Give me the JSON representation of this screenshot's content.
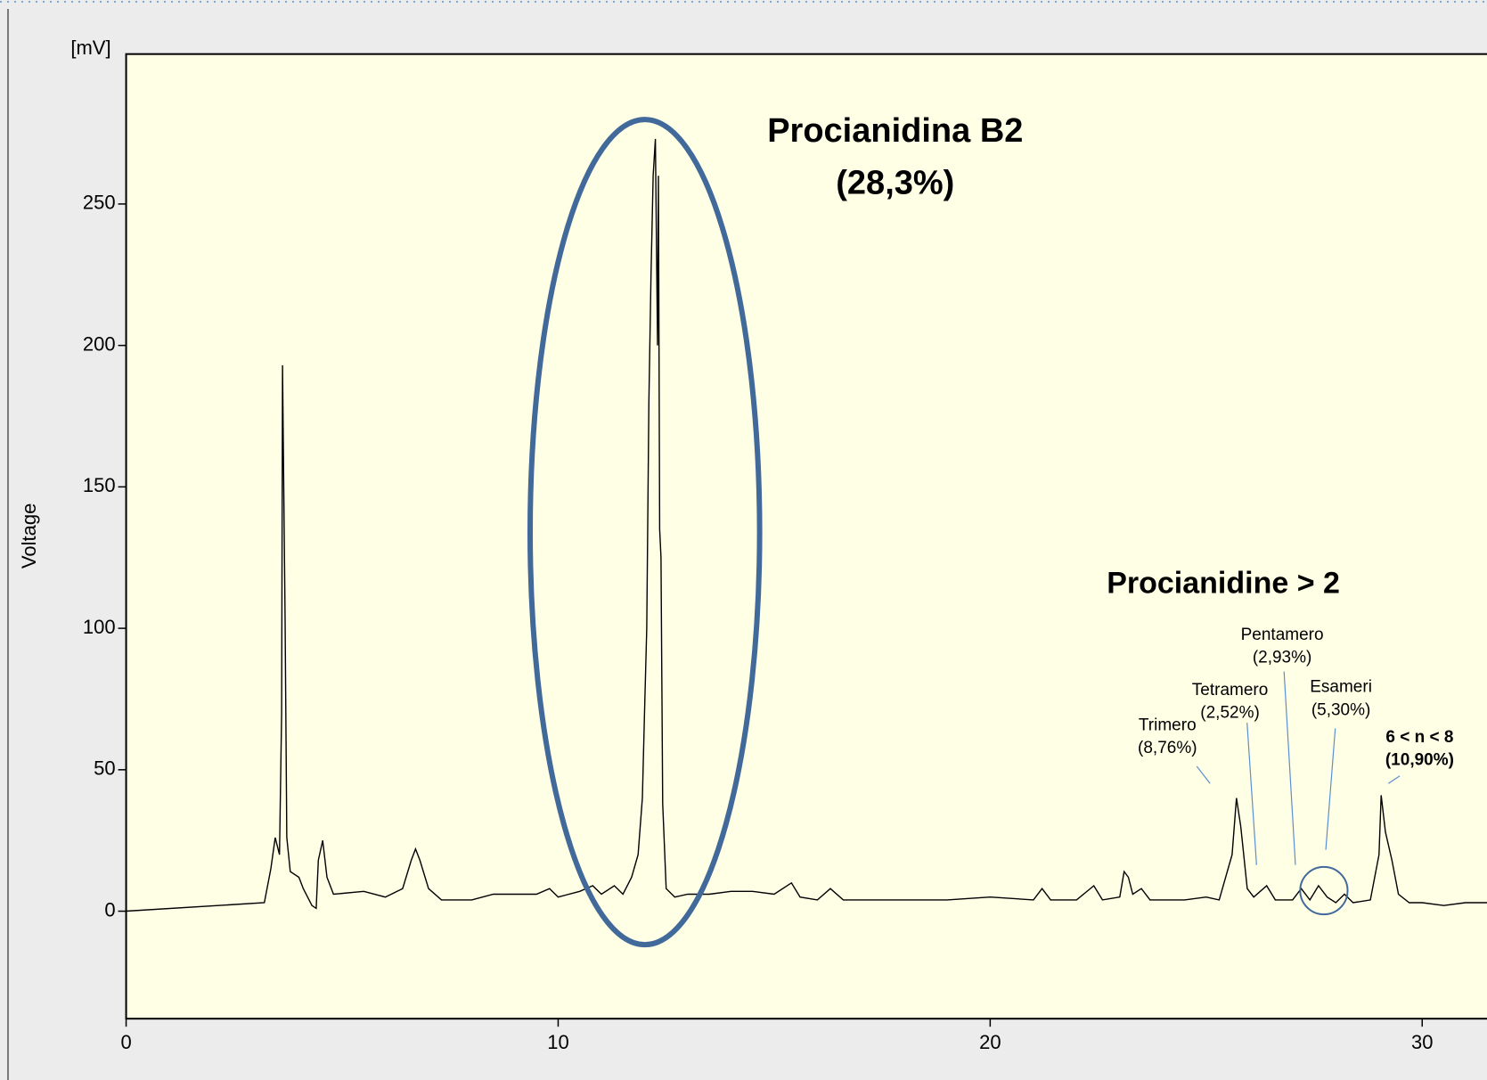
{
  "chart_data": {
    "type": "line",
    "y_unit": "[mV]",
    "ylabel": "Voltage",
    "xlim": [
      0,
      31.5
    ],
    "ylim": [
      -38,
      303
    ],
    "xticks": [
      0,
      10,
      20,
      30
    ],
    "yticks": [
      0,
      50,
      100,
      150,
      200,
      250
    ],
    "main_peak": {
      "name": "Procianidina B2",
      "share": "(28,3%)"
    },
    "group_label": "Procianidine > 2",
    "peak_labels": [
      {
        "name": "Trimero",
        "share": "(8,76%)"
      },
      {
        "name": "Tetramero",
        "share": "(2,52%)"
      },
      {
        "name": "Pentamero",
        "share": "(2,93%)"
      },
      {
        "name": "Esameri",
        "share": "(5,30%)"
      },
      {
        "name": "6 < n < 8",
        "share": "(10,90%)"
      }
    ],
    "series": [
      {
        "name": "Voltage",
        "color": "#000000",
        "x": [
          0,
          3.2,
          3.35,
          3.45,
          3.55,
          3.6,
          3.62,
          3.68,
          3.72,
          3.8,
          4.0,
          4.1,
          4.3,
          4.4,
          4.45,
          4.55,
          4.65,
          4.8,
          5.5,
          6.0,
          6.4,
          6.6,
          6.7,
          6.8,
          7.0,
          7.3,
          8.0,
          8.5,
          9.0,
          9.5,
          9.8,
          10.0,
          10.5,
          10.8,
          11.0,
          11.3,
          11.5,
          11.7,
          11.85,
          11.95,
          12.0,
          12.05,
          12.1,
          12.15,
          12.2,
          12.25,
          12.3,
          12.32,
          12.35,
          12.38,
          12.42,
          12.5,
          12.7,
          13.0,
          13.5,
          14.0,
          14.5,
          15.0,
          15.4,
          15.6,
          16.0,
          16.3,
          16.6,
          17.0,
          18.0,
          19.0,
          20.0,
          21.0,
          21.2,
          21.4,
          22.0,
          22.4,
          22.6,
          23.0,
          23.1,
          23.2,
          23.3,
          23.5,
          23.7,
          24.5,
          25.0,
          25.3,
          25.6,
          25.7,
          25.8,
          25.95,
          26.1,
          26.4,
          26.6,
          27.0,
          27.2,
          27.4,
          27.6,
          27.8,
          28.0,
          28.2,
          28.4,
          28.8,
          29.0,
          29.05,
          29.15,
          29.3,
          29.45,
          29.7,
          30.0,
          30.5,
          31.0,
          31.5
        ],
        "values": [
          0,
          3,
          15,
          26,
          20,
          70,
          193,
          103,
          26,
          14,
          12,
          8,
          2,
          1,
          18,
          25,
          12,
          6,
          7,
          5,
          8,
          18,
          22,
          18,
          8,
          4,
          4,
          6,
          6,
          6,
          8,
          5,
          7,
          9,
          6,
          9,
          6,
          12,
          20,
          40,
          70,
          100,
          180,
          225,
          260,
          273,
          200,
          260,
          135,
          125,
          38,
          8,
          5,
          6,
          6,
          7,
          7,
          6,
          10,
          5,
          4,
          8,
          4,
          4,
          4,
          4,
          5,
          4,
          8,
          4,
          4,
          9,
          4,
          5,
          14,
          12,
          6,
          8,
          4,
          4,
          5,
          4,
          20,
          40,
          30,
          8,
          5,
          9,
          4,
          4,
          8,
          4,
          9,
          5,
          3,
          6,
          3,
          4,
          20,
          41,
          28,
          18,
          6,
          3,
          3,
          2,
          3,
          3
        ]
      }
    ]
  }
}
